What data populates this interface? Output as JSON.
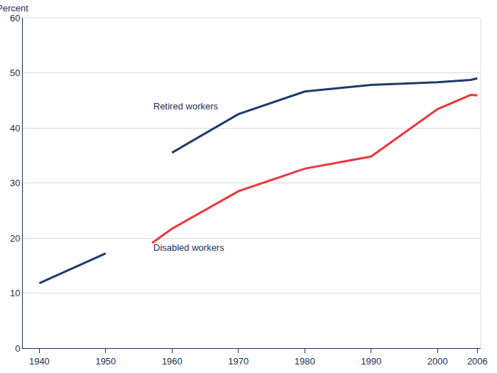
{
  "chart_data": {
    "type": "line",
    "y_label": "Percent",
    "x": [
      1940,
      1950,
      1957,
      1960,
      1970,
      1980,
      1990,
      2000,
      2005,
      2006
    ],
    "series": [
      {
        "name": "Retired workers",
        "color": "#1f3a68",
        "values": [
          11.8,
          17.2,
          null,
          35.5,
          42.5,
          46.6,
          47.8,
          48.3,
          48.7,
          49.0
        ]
      },
      {
        "name": "Disabled workers",
        "color": "#e8383d",
        "values": [
          null,
          null,
          19.1,
          21.7,
          28.5,
          32.6,
          34.8,
          43.4,
          46.0,
          45.9
        ]
      }
    ],
    "xlim": [
      1937.5,
      2006.5
    ],
    "xticks": [
      1940,
      1950,
      1960,
      1970,
      1980,
      1990,
      2000,
      2006
    ],
    "ylim": [
      0,
      60
    ],
    "yticks": [
      0,
      10,
      20,
      30,
      40,
      50,
      60
    ],
    "grid": true
  }
}
